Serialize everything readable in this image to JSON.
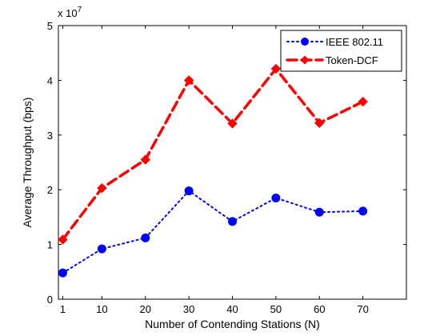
{
  "chart_data": {
    "type": "line",
    "xlabel": "Number of Contending Stations (N)",
    "ylabel": "Average Throughput (bps)",
    "y_multiplier_label": "x 10",
    "y_multiplier_exponent": "7",
    "x_ticks": [
      1,
      10,
      20,
      30,
      40,
      50,
      60,
      70
    ],
    "xlim": [
      0,
      80
    ],
    "ylim": [
      0,
      5
    ],
    "y_ticks": [
      0,
      1,
      2,
      3,
      4,
      5
    ],
    "grid": false,
    "legend_position": "top-right",
    "series": [
      {
        "name": "IEEE 802.11",
        "color": "#0000ff",
        "line_style": "dotted",
        "marker": "circle",
        "x": [
          1,
          10,
          20,
          30,
          40,
          50,
          60,
          70
        ],
        "values": [
          0.48,
          0.92,
          1.12,
          1.98,
          1.42,
          1.85,
          1.59,
          1.61
        ]
      },
      {
        "name": "Token-DCF",
        "color": "#ff0000",
        "line_style": "dashed",
        "marker": "diamond",
        "x": [
          1,
          10,
          20,
          30,
          40,
          50,
          60,
          70
        ],
        "values": [
          1.09,
          2.03,
          2.55,
          4.0,
          3.21,
          4.21,
          3.22,
          3.61
        ]
      }
    ]
  }
}
